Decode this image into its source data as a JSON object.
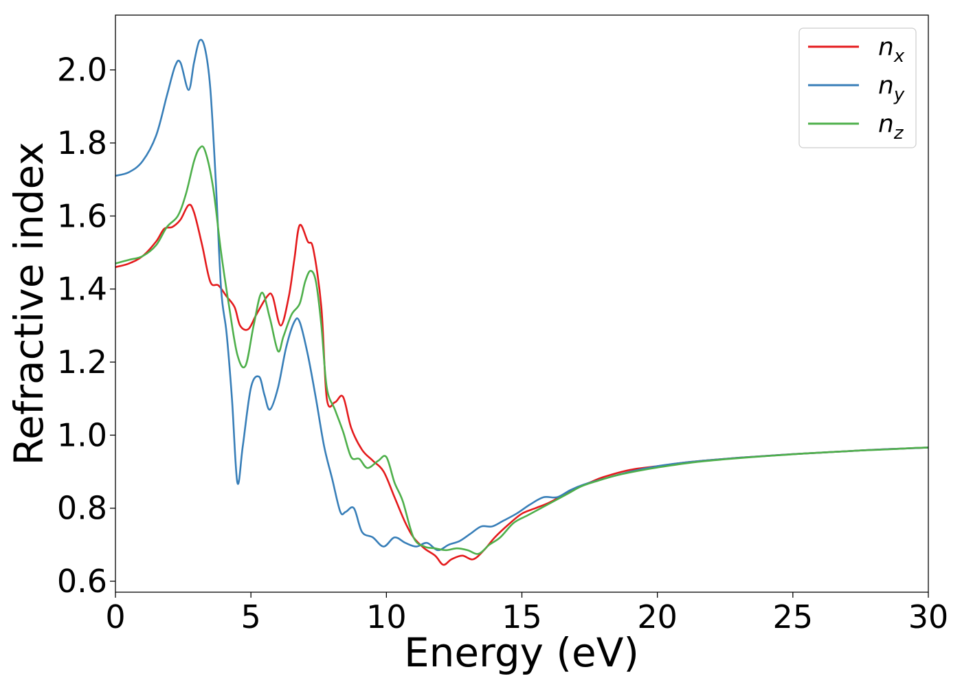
{
  "chart_data": {
    "type": "line",
    "xlabel": "Energy (eV)",
    "ylabel": "Refractive index",
    "xlim": [
      0,
      30
    ],
    "ylim": [
      0.57,
      2.15
    ],
    "xticks": [
      0,
      5,
      10,
      15,
      20,
      25,
      30
    ],
    "xtick_labels": [
      "0",
      "5",
      "10",
      "15",
      "20",
      "25",
      "30"
    ],
    "yticks": [
      0.6,
      0.8,
      1.0,
      1.2,
      1.4,
      1.6,
      1.8,
      2.0
    ],
    "ytick_labels": [
      "0.6",
      "0.8",
      "1.0",
      "1.2",
      "1.4",
      "1.6",
      "1.8",
      "2.0"
    ],
    "legend_position": "top-right",
    "grid": false,
    "series": [
      {
        "name": "n_x",
        "label_main": "n",
        "label_sub": "x",
        "color": "#e41a1c",
        "x": [
          0,
          0.5,
          1.0,
          1.5,
          1.8,
          2.1,
          2.4,
          2.7,
          2.9,
          3.2,
          3.5,
          3.8,
          4.1,
          4.4,
          4.6,
          4.9,
          5.2,
          5.6,
          5.8,
          6.1,
          6.4,
          6.6,
          6.8,
          7.1,
          7.3,
          7.6,
          7.8,
          8.1,
          8.4,
          8.7,
          9.1,
          9.5,
          9.9,
          10.3,
          10.7,
          11.0,
          11.4,
          11.8,
          12.1,
          12.4,
          12.8,
          13.2,
          13.6,
          14.0,
          14.5,
          15.0,
          15.5,
          16.0,
          16.5,
          17.0,
          17.5,
          18.0,
          19.0,
          20.0,
          21.0,
          22.0,
          23.0,
          24.0,
          25.0,
          26.0,
          27.0,
          28.0,
          29.0,
          30.0
        ],
        "y": [
          1.46,
          1.47,
          1.49,
          1.53,
          1.565,
          1.57,
          1.59,
          1.63,
          1.61,
          1.52,
          1.42,
          1.41,
          1.38,
          1.35,
          1.3,
          1.29,
          1.33,
          1.38,
          1.38,
          1.3,
          1.38,
          1.48,
          1.575,
          1.53,
          1.51,
          1.35,
          1.1,
          1.09,
          1.105,
          1.02,
          0.96,
          0.93,
          0.9,
          0.83,
          0.76,
          0.72,
          0.69,
          0.67,
          0.645,
          0.66,
          0.67,
          0.66,
          0.685,
          0.72,
          0.755,
          0.785,
          0.8,
          0.815,
          0.835,
          0.855,
          0.87,
          0.885,
          0.905,
          0.915,
          0.925,
          0.932,
          0.938,
          0.943,
          0.948,
          0.952,
          0.956,
          0.96,
          0.963,
          0.966
        ]
      },
      {
        "name": "n_y",
        "label_main": "n",
        "label_sub": "y",
        "color": "#377eb8",
        "x": [
          0,
          0.5,
          1.0,
          1.5,
          1.9,
          2.2,
          2.4,
          2.7,
          2.9,
          3.1,
          3.3,
          3.5,
          3.7,
          3.9,
          4.1,
          4.3,
          4.5,
          4.7,
          5.0,
          5.3,
          5.5,
          5.7,
          6.0,
          6.3,
          6.6,
          6.8,
          7.1,
          7.4,
          7.7,
          8.0,
          8.3,
          8.5,
          8.8,
          9.1,
          9.5,
          9.9,
          10.3,
          10.7,
          11.1,
          11.5,
          11.9,
          12.3,
          12.7,
          13.1,
          13.5,
          13.9,
          14.3,
          14.8,
          15.3,
          15.8,
          16.3,
          16.8,
          17.3,
          18.0,
          19.0,
          20.0,
          21.0,
          22.0,
          23.0,
          24.0,
          25.0,
          26.0,
          27.0,
          28.0,
          29.0,
          30.0
        ],
        "y": [
          1.71,
          1.72,
          1.75,
          1.82,
          1.93,
          2.01,
          2.02,
          1.945,
          2.02,
          2.08,
          2.06,
          1.95,
          1.7,
          1.4,
          1.28,
          1.1,
          0.87,
          0.97,
          1.13,
          1.16,
          1.11,
          1.07,
          1.13,
          1.24,
          1.31,
          1.31,
          1.22,
          1.1,
          0.97,
          0.88,
          0.79,
          0.79,
          0.8,
          0.735,
          0.72,
          0.695,
          0.72,
          0.705,
          0.695,
          0.705,
          0.685,
          0.7,
          0.71,
          0.73,
          0.75,
          0.75,
          0.765,
          0.785,
          0.81,
          0.83,
          0.83,
          0.85,
          0.865,
          0.88,
          0.9,
          0.915,
          0.925,
          0.932,
          0.938,
          0.943,
          0.948,
          0.952,
          0.956,
          0.96,
          0.963,
          0.966
        ]
      },
      {
        "name": "n_z",
        "label_main": "n",
        "label_sub": "z",
        "color": "#4daf4a",
        "x": [
          0,
          0.5,
          1.0,
          1.5,
          1.9,
          2.3,
          2.6,
          2.9,
          3.1,
          3.3,
          3.6,
          3.9,
          4.2,
          4.5,
          4.8,
          5.1,
          5.4,
          5.7,
          6.0,
          6.2,
          6.5,
          6.8,
          7.0,
          7.2,
          7.4,
          7.6,
          7.8,
          8.1,
          8.4,
          8.7,
          9.0,
          9.3,
          9.7,
          10.0,
          10.3,
          10.6,
          11.0,
          11.4,
          11.8,
          12.2,
          12.6,
          13.0,
          13.4,
          13.8,
          14.2,
          14.7,
          15.2,
          15.7,
          16.2,
          16.7,
          17.2,
          17.8,
          18.5,
          19.5,
          20.5,
          21.5,
          22.5,
          23.5,
          24.5,
          25.5,
          26.5,
          27.5,
          28.5,
          29.5,
          30.0
        ],
        "y": [
          1.47,
          1.48,
          1.49,
          1.52,
          1.57,
          1.6,
          1.66,
          1.75,
          1.785,
          1.78,
          1.68,
          1.5,
          1.35,
          1.22,
          1.19,
          1.3,
          1.39,
          1.32,
          1.23,
          1.27,
          1.33,
          1.36,
          1.42,
          1.45,
          1.42,
          1.3,
          1.13,
          1.07,
          1.01,
          0.94,
          0.935,
          0.91,
          0.93,
          0.94,
          0.87,
          0.82,
          0.72,
          0.695,
          0.69,
          0.685,
          0.69,
          0.685,
          0.675,
          0.7,
          0.72,
          0.76,
          0.78,
          0.8,
          0.82,
          0.84,
          0.86,
          0.875,
          0.89,
          0.905,
          0.917,
          0.927,
          0.934,
          0.94,
          0.945,
          0.95,
          0.954,
          0.958,
          0.961,
          0.965,
          0.966
        ]
      }
    ]
  }
}
